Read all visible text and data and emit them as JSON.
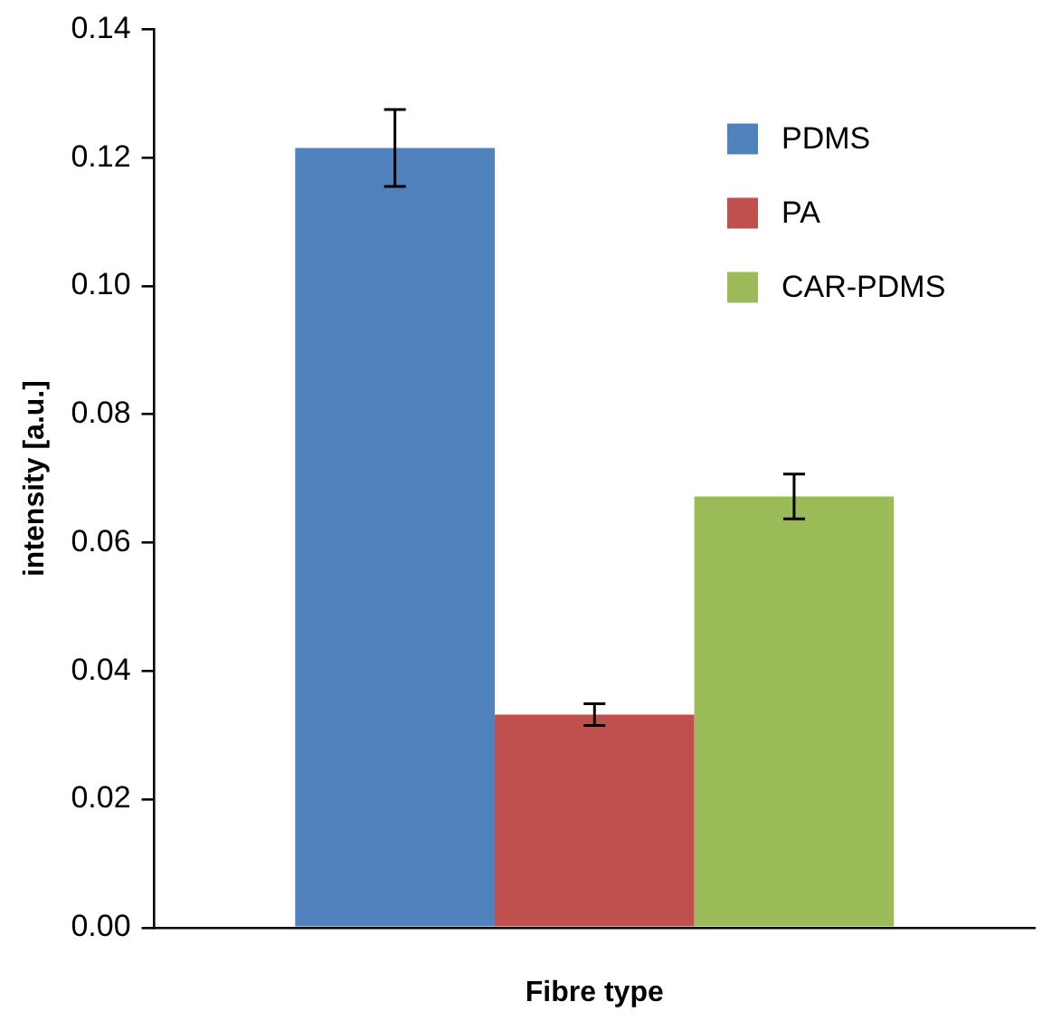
{
  "chart_data": {
    "type": "bar",
    "xlabel": "Fibre type",
    "ylabel": "intensity [a.u.]",
    "categories": [
      null
    ],
    "series": [
      {
        "name": "PDMS",
        "color": "#4f81bd",
        "values": [
          0.1215
        ],
        "errors": [
          0.006
        ]
      },
      {
        "name": "PA",
        "color": "#c0504d",
        "values": [
          0.0332
        ],
        "errors": [
          0.0017
        ]
      },
      {
        "name": "CAR-PDMS",
        "color": "#9bbb59",
        "values": [
          0.0672
        ],
        "errors": [
          0.0035
        ]
      }
    ],
    "ylim": [
      0,
      0.14
    ],
    "yticks": [
      {
        "value": 0,
        "label": "0.00"
      },
      {
        "value": 0.02,
        "label": "0.02"
      },
      {
        "value": 0.04,
        "label": "0.04"
      },
      {
        "value": 0.06,
        "label": "0.06"
      },
      {
        "value": 0.08,
        "label": "0.08"
      },
      {
        "value": 0.1,
        "label": "0.10"
      },
      {
        "value": 0.12,
        "label": "0.12"
      },
      {
        "value": 0.14,
        "label": "0.14"
      }
    ],
    "grid": false,
    "legend": "top right"
  }
}
